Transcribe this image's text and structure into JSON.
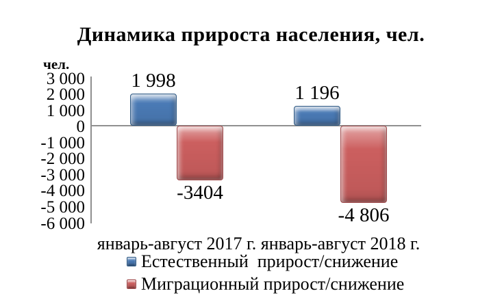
{
  "page": {
    "background": "#ffffff"
  },
  "chart_data": {
    "type": "bar",
    "title": "Динамика прироста населения, чел.",
    "y_axis_unit": "чел.",
    "categories": [
      "январь-август 2017 г.",
      "январь-август 2018 г."
    ],
    "series": [
      {
        "name": "Естественный  прирост/снижение",
        "color": "#4a7ab5",
        "border_color": "#2e5984",
        "values": [
          1998,
          1196
        ],
        "value_labels": [
          "1 998",
          "1 196"
        ]
      },
      {
        "name": "Миграционный прирост/снижение",
        "color": "#cc5f5f",
        "border_color": "#a04a4c",
        "values": [
          -3404,
          -4806
        ],
        "value_labels": [
          "-3404",
          "-4 806"
        ]
      }
    ],
    "y_tick_values": [
      3000,
      2000,
      1000,
      0,
      -1000,
      -2000,
      -3000,
      -4000,
      -5000,
      -6000
    ],
    "y_tick_labels": [
      "3 000",
      "2 000",
      "1 000",
      "0",
      "-1 000",
      "-2 000",
      "-3 000",
      "-4 000",
      "-5 000",
      "-6 000"
    ],
    "ylim": [
      -6000,
      3000
    ],
    "grid": false,
    "legend_position": "bottom",
    "axis_color": "#8f8f8f",
    "text_color": "#000000"
  }
}
